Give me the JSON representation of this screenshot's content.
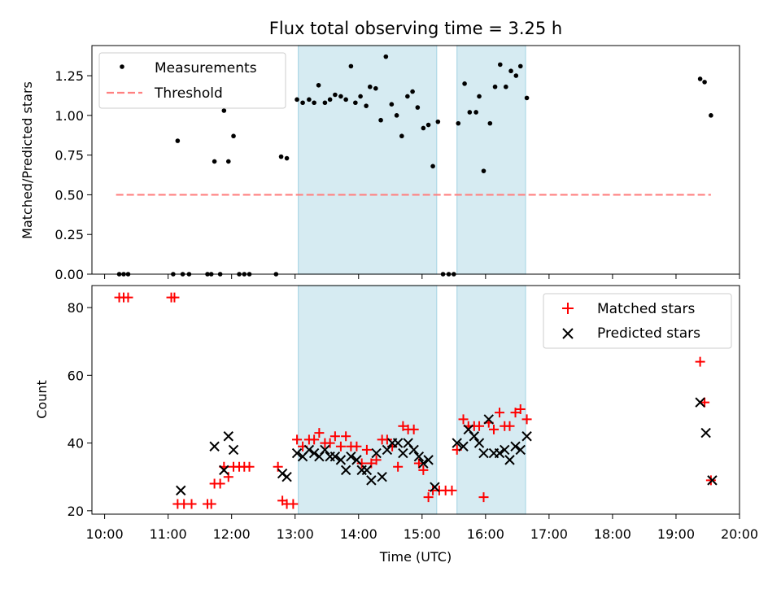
{
  "chart_data": {
    "title": "Flux total observing time = 3.25 h",
    "xlabel": "Time (UTC)",
    "x_ticks": [
      "10:00",
      "11:00",
      "12:00",
      "13:00",
      "14:00",
      "15:00",
      "16:00",
      "17:00",
      "18:00",
      "19:00",
      "20:00"
    ],
    "xlim_hours": [
      9.8,
      20.0
    ],
    "shaded_intervals_hours": [
      [
        13.05,
        15.23
      ],
      [
        15.55,
        16.63
      ]
    ],
    "shade_color": "#add8e6",
    "panels": [
      {
        "type": "scatter",
        "ylabel": "Matched/Predicted stars",
        "ylim": [
          0,
          1.44
        ],
        "y_ticks": [
          "0.00",
          "0.25",
          "0.50",
          "0.75",
          "1.00",
          "1.25"
        ],
        "y_tick_values": [
          0,
          0.25,
          0.5,
          0.75,
          1.0,
          1.25
        ],
        "legend_position": "top-left",
        "series": [
          {
            "name": "Measurements",
            "marker": "dot",
            "color": "#000000",
            "points": [
              [
                10.23,
                0
              ],
              [
                10.3,
                0
              ],
              [
                10.37,
                0
              ],
              [
                11.08,
                0
              ],
              [
                11.15,
                0.84
              ],
              [
                11.23,
                0
              ],
              [
                11.33,
                0
              ],
              [
                11.62,
                0
              ],
              [
                11.68,
                0
              ],
              [
                11.73,
                0.71
              ],
              [
                11.82,
                0
              ],
              [
                11.88,
                1.03
              ],
              [
                11.95,
                0.71
              ],
              [
                12.03,
                0.87
              ],
              [
                12.12,
                0
              ],
              [
                12.2,
                0
              ],
              [
                12.28,
                0
              ],
              [
                12.7,
                0
              ],
              [
                12.78,
                0.74
              ],
              [
                12.87,
                0.73
              ],
              [
                13.03,
                1.1
              ],
              [
                13.12,
                1.08
              ],
              [
                13.22,
                1.1
              ],
              [
                13.3,
                1.08
              ],
              [
                13.37,
                1.19
              ],
              [
                13.47,
                1.08
              ],
              [
                13.55,
                1.1
              ],
              [
                13.63,
                1.13
              ],
              [
                13.72,
                1.12
              ],
              [
                13.8,
                1.1
              ],
              [
                13.88,
                1.31
              ],
              [
                13.95,
                1.08
              ],
              [
                14.03,
                1.12
              ],
              [
                14.12,
                1.06
              ],
              [
                14.18,
                1.18
              ],
              [
                14.27,
                1.17
              ],
              [
                14.35,
                0.97
              ],
              [
                14.43,
                1.37
              ],
              [
                14.52,
                1.07
              ],
              [
                14.6,
                1.0
              ],
              [
                14.68,
                0.87
              ],
              [
                14.77,
                1.12
              ],
              [
                14.85,
                1.15
              ],
              [
                14.93,
                1.05
              ],
              [
                15.02,
                0.92
              ],
              [
                15.1,
                0.94
              ],
              [
                15.17,
                0.68
              ],
              [
                15.25,
                0.96
              ],
              [
                15.33,
                0
              ],
              [
                15.42,
                0
              ],
              [
                15.5,
                0
              ],
              [
                15.57,
                0.95
              ],
              [
                15.67,
                1.2
              ],
              [
                15.75,
                1.02
              ],
              [
                15.85,
                1.02
              ],
              [
                15.9,
                1.12
              ],
              [
                15.97,
                0.65
              ],
              [
                16.07,
                0.95
              ],
              [
                16.15,
                1.18
              ],
              [
                16.23,
                1.32
              ],
              [
                16.32,
                1.18
              ],
              [
                16.4,
                1.28
              ],
              [
                16.48,
                1.25
              ],
              [
                16.55,
                1.31
              ],
              [
                16.65,
                1.11
              ],
              [
                19.38,
                1.23
              ],
              [
                19.45,
                1.21
              ],
              [
                19.55,
                1.0
              ]
            ]
          },
          {
            "name": "Threshold",
            "marker": "dashed-line",
            "color": "#ff8080",
            "points": [
              [
                10.18,
                0.5
              ],
              [
                19.55,
                0.5
              ]
            ]
          }
        ]
      },
      {
        "type": "scatter",
        "ylabel": "Count",
        "ylim": [
          19,
          86.5
        ],
        "y_ticks": [
          "20",
          "40",
          "60",
          "80"
        ],
        "y_tick_values": [
          20,
          40,
          60,
          80
        ],
        "legend_position": "top-right",
        "series": [
          {
            "name": "Matched stars",
            "marker": "plus",
            "color": "#ff0000",
            "points": [
              [
                10.23,
                83
              ],
              [
                10.3,
                83
              ],
              [
                10.37,
                83
              ],
              [
                11.05,
                83
              ],
              [
                11.1,
                83
              ],
              [
                11.15,
                22
              ],
              [
                11.25,
                22
              ],
              [
                11.37,
                22
              ],
              [
                11.62,
                22
              ],
              [
                11.68,
                22
              ],
              [
                11.73,
                28
              ],
              [
                11.82,
                28
              ],
              [
                11.88,
                33
              ],
              [
                11.95,
                30
              ],
              [
                12.03,
                33
              ],
              [
                12.12,
                33
              ],
              [
                12.2,
                33
              ],
              [
                12.28,
                33
              ],
              [
                12.73,
                33
              ],
              [
                12.8,
                23
              ],
              [
                12.87,
                22
              ],
              [
                12.97,
                22
              ],
              [
                13.03,
                41
              ],
              [
                13.12,
                39
              ],
              [
                13.22,
                41
              ],
              [
                13.3,
                41
              ],
              [
                13.38,
                43
              ],
              [
                13.47,
                40
              ],
              [
                13.55,
                40
              ],
              [
                13.63,
                42
              ],
              [
                13.72,
                39
              ],
              [
                13.8,
                42
              ],
              [
                13.88,
                39
              ],
              [
                13.97,
                39
              ],
              [
                14.05,
                34
              ],
              [
                14.13,
                38
              ],
              [
                14.2,
                34
              ],
              [
                14.28,
                35
              ],
              [
                14.37,
                41
              ],
              [
                14.45,
                41
              ],
              [
                14.53,
                39
              ],
              [
                14.62,
                33
              ],
              [
                14.7,
                45
              ],
              [
                14.78,
                44
              ],
              [
                14.87,
                44
              ],
              [
                14.95,
                34
              ],
              [
                15.02,
                32
              ],
              [
                15.1,
                24
              ],
              [
                15.17,
                26
              ],
              [
                15.27,
                26
              ],
              [
                15.37,
                26
              ],
              [
                15.47,
                26
              ],
              [
                15.55,
                38
              ],
              [
                15.65,
                47
              ],
              [
                15.73,
                45
              ],
              [
                15.82,
                45
              ],
              [
                15.9,
                45
              ],
              [
                15.97,
                24
              ],
              [
                16.05,
                46
              ],
              [
                16.13,
                44
              ],
              [
                16.22,
                49
              ],
              [
                16.3,
                45
              ],
              [
                16.38,
                45
              ],
              [
                16.47,
                49
              ],
              [
                16.55,
                50
              ],
              [
                16.65,
                47
              ],
              [
                19.38,
                64
              ],
              [
                19.45,
                52
              ],
              [
                19.55,
                29
              ]
            ]
          },
          {
            "name": "Predicted stars",
            "marker": "cross",
            "color": "#000000",
            "points": [
              [
                11.2,
                26
              ],
              [
                11.73,
                39
              ],
              [
                11.88,
                32
              ],
              [
                11.95,
                42
              ],
              [
                12.03,
                38
              ],
              [
                12.8,
                31
              ],
              [
                12.87,
                30
              ],
              [
                13.03,
                37
              ],
              [
                13.12,
                36
              ],
              [
                13.22,
                38
              ],
              [
                13.3,
                37
              ],
              [
                13.38,
                36
              ],
              [
                13.47,
                38
              ],
              [
                13.55,
                36
              ],
              [
                13.63,
                36
              ],
              [
                13.72,
                35
              ],
              [
                13.8,
                32
              ],
              [
                13.88,
                36
              ],
              [
                13.97,
                35
              ],
              [
                14.05,
                32
              ],
              [
                14.13,
                32
              ],
              [
                14.2,
                29
              ],
              [
                14.28,
                37
              ],
              [
                14.37,
                30
              ],
              [
                14.45,
                38
              ],
              [
                14.53,
                40
              ],
              [
                14.62,
                40
              ],
              [
                14.7,
                37
              ],
              [
                14.78,
                40
              ],
              [
                14.87,
                38
              ],
              [
                14.95,
                36
              ],
              [
                15.02,
                34
              ],
              [
                15.1,
                35
              ],
              [
                15.2,
                27
              ],
              [
                15.55,
                40
              ],
              [
                15.65,
                39
              ],
              [
                15.73,
                44
              ],
              [
                15.82,
                42
              ],
              [
                15.9,
                40
              ],
              [
                15.97,
                37
              ],
              [
                16.05,
                47
              ],
              [
                16.13,
                37
              ],
              [
                16.22,
                37
              ],
              [
                16.3,
                38
              ],
              [
                16.38,
                35
              ],
              [
                16.47,
                39
              ],
              [
                16.55,
                38
              ],
              [
                16.65,
                42
              ],
              [
                19.38,
                52
              ],
              [
                19.47,
                43
              ],
              [
                19.57,
                29
              ]
            ]
          }
        ]
      }
    ]
  }
}
